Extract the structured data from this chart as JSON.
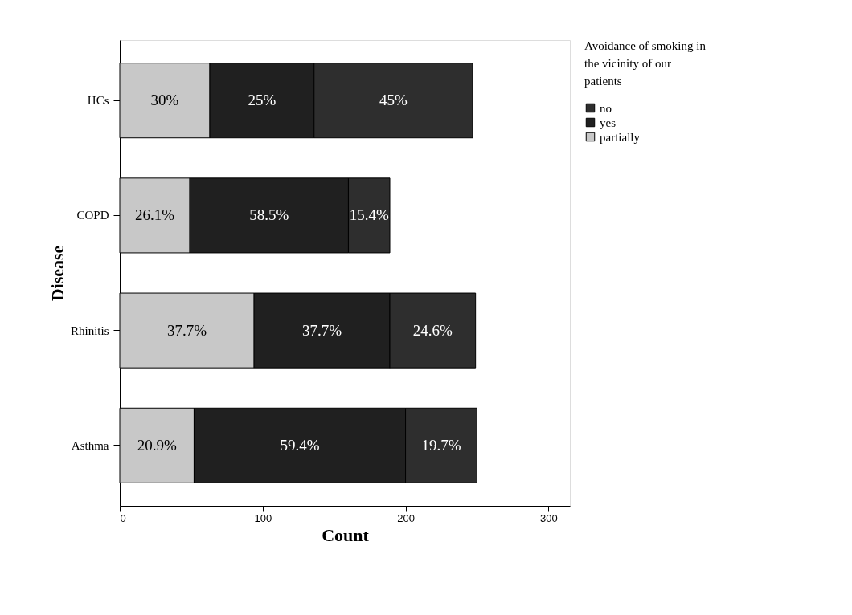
{
  "chart_data": {
    "type": "bar",
    "orientation": "horizontal",
    "stacked": true,
    "categories": [
      "HCs",
      "COPD",
      "Rhinitis",
      "Asthma"
    ],
    "xlabel": "Count",
    "ylabel": "Disease",
    "legend_title": "Avoidance of smoking in the vicinity of our patients",
    "xlim": [
      0,
      315
    ],
    "xticks": [
      0,
      100,
      200,
      300
    ],
    "grid": false,
    "legend": "top right",
    "series": [
      {
        "name": "partially",
        "color": "#c8c8c8",
        "values": [
          63,
          49,
          94,
          52
        ]
      },
      {
        "name": "yes",
        "color": "#202020",
        "values": [
          73,
          111,
          95,
          148
        ]
      },
      {
        "name": "no",
        "color": "#2e2e2e",
        "values": [
          111,
          29,
          60,
          50
        ]
      }
    ],
    "annotations": [
      "30%",
      "25%",
      "45%",
      "26.1%",
      "58.5%",
      "15.4%",
      "37.7%",
      "37.7%",
      "24.6%",
      "20.9%",
      "59.4%",
      "19.7%"
    ]
  }
}
